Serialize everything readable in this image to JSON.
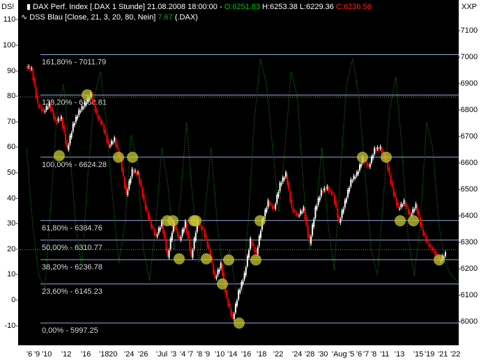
{
  "header": {
    "left_corner": "DS!",
    "right_corner": "XXP",
    "line1": {
      "name": "DAX Perf. Index [.DAX  1 Stunde] 21.08.2008 18:00:00 -",
      "open": "O:6251.83",
      "high": "H:6253.38",
      "low": "L:6229.36",
      "close": "C:6236.56"
    },
    "line2": {
      "name": "DSS Blau [Close, 21, 3, 20, 80, Nein]",
      "value": "7.67",
      "symbol": "(.DAX)"
    }
  },
  "colors": {
    "background": "#000000",
    "up": "#ffffff",
    "down": "#ff0000",
    "fib_line": "#9aa8e0",
    "dss": "#1f8a1f",
    "marker": "#c8c832",
    "open": "#00c000",
    "close": "#ff2020"
  },
  "chart_data": {
    "type": "candlestick",
    "left_axis": {
      "range": [
        -10,
        110
      ],
      "ticks": [
        "110",
        "100",
        "90",
        "80",
        "70",
        "60",
        "50",
        "40",
        "30",
        "20",
        "10",
        "0",
        "-10"
      ]
    },
    "right_axis": {
      "range": [
        5950,
        7110
      ],
      "ticks": [
        "7100",
        "7000",
        "6900",
        "6800",
        "6700",
        "6600",
        "6500",
        "6400",
        "6300",
        "6200",
        "6100",
        "6000"
      ]
    },
    "x_ticks": [
      "6",
      "9",
      "10",
      "12",
      "16",
      "18",
      "20",
      "24",
      "26",
      "Jul",
      "3",
      "4",
      "7",
      "8",
      "9",
      "10",
      "14",
      "16",
      "18",
      "22",
      "24",
      "28",
      "30",
      "Aug",
      "5",
      "6",
      "7",
      "8",
      "11",
      "13",
      "15",
      "19",
      "21",
      "22"
    ],
    "closes": [
      6968,
      6955,
      6824,
      6797,
      6824,
      6758,
      6771,
      6653,
      6745,
      6797,
      6824,
      6863,
      6784,
      6745,
      6666,
      6692,
      6613,
      6482,
      6574,
      6561,
      6455,
      6376,
      6324,
      6376,
      6245,
      6376,
      6311,
      6376,
      6245,
      6376,
      6350,
      6271,
      6166,
      6218,
      6087,
      6013,
      6113,
      6179,
      6311,
      6258,
      6382,
      6455,
      6429,
      6521,
      6561,
      6429,
      6403,
      6429,
      6297,
      6429,
      6495,
      6508,
      6482,
      6376,
      6455,
      6534,
      6561,
      6618,
      6587,
      6653,
      6658,
      6610,
      6505,
      6429,
      6455,
      6403,
      6442,
      6350,
      6297,
      6271,
      6232,
      6258
    ],
    "dss_line": {
      "name": "DSS Blau",
      "values": [
        60,
        30,
        10,
        5,
        40,
        75,
        85,
        60,
        30,
        12,
        50,
        80,
        90,
        70,
        40,
        15,
        30,
        65,
        55,
        20,
        8,
        30,
        60,
        45,
        20,
        40,
        70,
        40,
        15,
        35,
        60,
        30,
        10,
        20,
        5,
        3,
        30,
        70,
        95,
        85,
        60,
        35,
        60,
        90,
        80,
        45,
        20,
        35,
        60,
        30,
        12,
        50,
        85,
        95,
        80,
        50,
        20,
        10,
        40,
        75,
        88,
        60,
        25,
        10,
        30,
        70,
        60,
        30,
        15,
        10,
        7.67
      ]
    },
    "fib_levels": [
      {
        "label": "161,80% - 7011.79",
        "value": 7011.79
      },
      {
        "label": "138,20% - 6858.81",
        "value": 6858.81
      },
      {
        "label": "100,00% - 6624.28",
        "value": 6624.28
      },
      {
        "label": "61,80% - 6384.76",
        "value": 6384.76
      },
      {
        "label": "50,00% - 6310.77",
        "value": 6310.77
      },
      {
        "label": "38,20% - 6236.78",
        "value": 6236.78
      },
      {
        "label": "23,60% - 6145.23",
        "value": 6145.23
      },
      {
        "label": "0,00% - 5997.25",
        "value": 5997.25
      }
    ],
    "dss_reference_levels": [
      80,
      20
    ],
    "markers": [
      6630,
      6860,
      6624,
      6624,
      6384,
      6240,
      6384,
      6240,
      6384,
      6384,
      6145,
      6236,
      5997,
      6236,
      6384,
      6624,
      6624,
      6384,
      6384,
      6236
    ]
  }
}
